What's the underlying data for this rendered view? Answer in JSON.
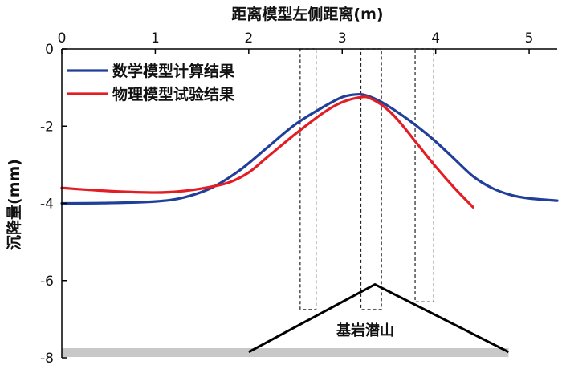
{
  "chart_data": {
    "type": "line",
    "xlabel": "距离模型左侧距离(m)",
    "ylabel": "沉降量(mm)",
    "xlim": [
      0,
      5.3
    ],
    "ylim": [
      -8,
      0
    ],
    "xticks": [
      0,
      1,
      2,
      3,
      4,
      5
    ],
    "yticks": [
      0,
      -2,
      -4,
      -6,
      -8
    ],
    "x_axis_position": "top",
    "grid": false,
    "legend_position": "top-left",
    "series": [
      {
        "name": "数学模型计算结果",
        "color": "#1f3f9a",
        "x": [
          0,
          0.5,
          1.0,
          1.3,
          1.6,
          1.9,
          2.2,
          2.5,
          2.8,
          3.0,
          3.15,
          3.25,
          3.4,
          3.6,
          3.8,
          4.0,
          4.2,
          4.4,
          4.6,
          4.8,
          5.0,
          5.3
        ],
        "y": [
          -4.0,
          -3.99,
          -3.95,
          -3.85,
          -3.6,
          -3.15,
          -2.55,
          -1.95,
          -1.5,
          -1.25,
          -1.18,
          -1.2,
          -1.35,
          -1.65,
          -2.0,
          -2.4,
          -2.85,
          -3.3,
          -3.6,
          -3.78,
          -3.87,
          -3.93
        ]
      },
      {
        "name": "物理模型试验结果",
        "color": "#e31d24",
        "x": [
          0,
          0.5,
          1.0,
          1.3,
          1.6,
          1.8,
          2.0,
          2.2,
          2.5,
          2.8,
          3.0,
          3.2,
          3.3,
          3.45,
          3.6,
          3.8,
          4.0,
          4.2,
          4.4
        ],
        "y": [
          -3.6,
          -3.68,
          -3.72,
          -3.68,
          -3.57,
          -3.45,
          -3.2,
          -2.8,
          -2.2,
          -1.65,
          -1.38,
          -1.25,
          -1.28,
          -1.5,
          -1.85,
          -2.45,
          -3.05,
          -3.6,
          -4.1
        ]
      }
    ],
    "annotations": [
      {
        "text": "基岩潜山",
        "type": "triangle",
        "x": [
          2.0,
          3.35,
          4.78
        ],
        "y": [
          -7.85,
          -6.1,
          -7.85
        ]
      },
      {
        "type": "dashed-box",
        "x0": 2.55,
        "x1": 2.72,
        "y0": 0,
        "y1": -6.75
      },
      {
        "type": "dashed-box",
        "x0": 3.2,
        "x1": 3.42,
        "y0": 0,
        "y1": -6.75
      },
      {
        "type": "dashed-box",
        "x0": 3.78,
        "x1": 3.98,
        "y0": 0,
        "y1": -6.55
      },
      {
        "type": "base-band",
        "x0": 0,
        "x1": 4.78,
        "y0": -7.75,
        "y1": -7.98,
        "color": "#c8c8c8"
      }
    ]
  }
}
